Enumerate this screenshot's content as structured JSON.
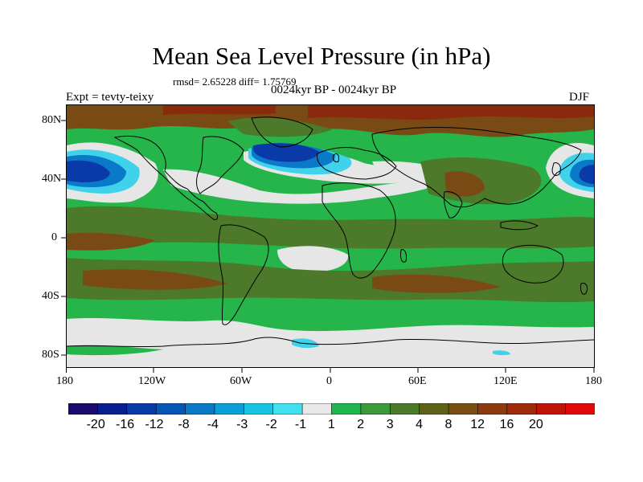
{
  "title": "Mean Sea Level Pressure (in hPa)",
  "stats": "rmsd= 2.65228 diff= 1.75769",
  "subtitle": "0024kyr BP - 0024kyr BP",
  "expt_label": "Expt = tevty-teixy",
  "season": "DJF",
  "y_axis_labels": [
    "80N",
    "40N",
    "0",
    "40S",
    "80S"
  ],
  "x_axis_labels": [
    "180",
    "120W",
    "60W",
    "0",
    "60E",
    "120E",
    "180"
  ],
  "colorbar": {
    "labels": [
      "-20",
      "-16",
      "-12",
      "-8",
      "-4",
      "-3",
      "-2",
      "-1",
      "1",
      "2",
      "3",
      "4",
      "8",
      "12",
      "16",
      "20"
    ],
    "colors": [
      "#1a0a6b",
      "#0a1f8f",
      "#0a3aa8",
      "#0855b8",
      "#0a79c8",
      "#0a9fd8",
      "#18c3e4",
      "#40e0ee",
      "#e8e8e8",
      "#1fb64e",
      "#3c9a3a",
      "#4a7a2a",
      "#5e6218",
      "#7a4e12",
      "#8e3a10",
      "#a02a0c",
      "#c0140a",
      "#e00808"
    ]
  },
  "palette": {
    "green": "#25b54a",
    "olive": "#4d7a2a",
    "brown": "#7a4a14",
    "darkred": "#8a2a0c",
    "gray": "#e6e6e6",
    "blue_dark": "#0a3aa8",
    "blue_mid": "#0a79c8",
    "cyan": "#3fd2ea"
  }
}
